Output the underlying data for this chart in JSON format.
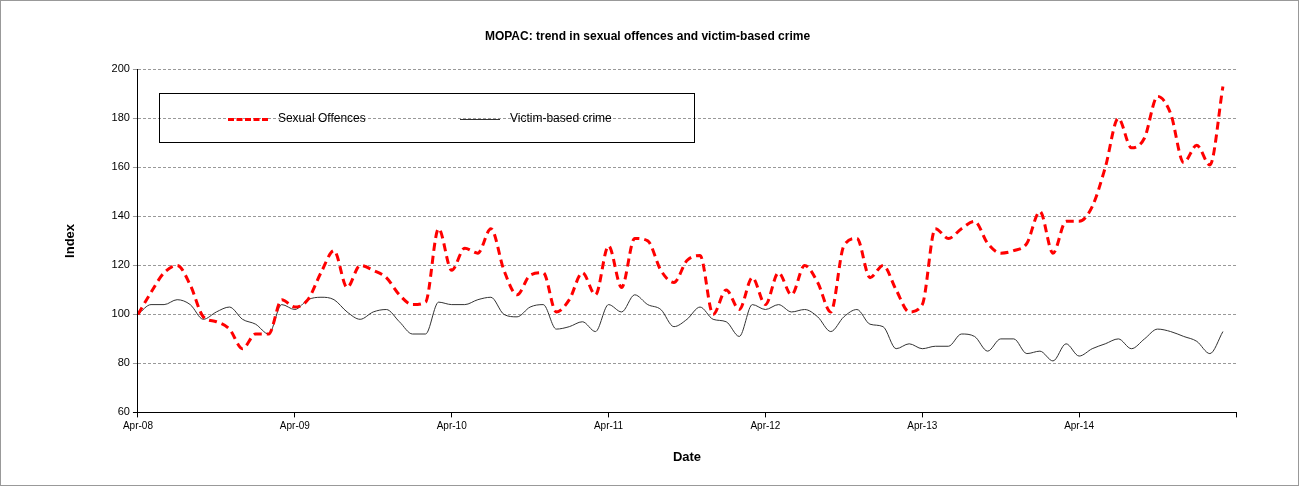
{
  "chart_data": {
    "type": "line",
    "title": "MOPAC: trend in sexual offences and victim-based crime",
    "xlabel": "Date",
    "ylabel": "Index",
    "x": [
      "2008-04",
      "2008-05",
      "2008-06",
      "2008-07",
      "2008-08",
      "2008-09",
      "2008-10",
      "2008-11",
      "2008-12",
      "2009-01",
      "2009-02",
      "2009-03",
      "2009-04",
      "2009-05",
      "2009-06",
      "2009-07",
      "2009-08",
      "2009-09",
      "2009-10",
      "2009-11",
      "2009-12",
      "2010-01",
      "2010-02",
      "2010-03",
      "2010-04",
      "2010-05",
      "2010-06",
      "2010-07",
      "2010-08",
      "2010-09",
      "2010-10",
      "2010-11",
      "2010-12",
      "2011-01",
      "2011-02",
      "2011-03",
      "2011-04",
      "2011-05",
      "2011-06",
      "2011-07",
      "2011-08",
      "2011-09",
      "2011-10",
      "2011-11",
      "2011-12",
      "2012-01",
      "2012-02",
      "2012-03",
      "2012-04",
      "2012-05",
      "2012-06",
      "2012-07",
      "2012-08",
      "2012-09",
      "2012-10",
      "2012-11",
      "2012-12",
      "2013-01",
      "2013-02",
      "2013-03",
      "2013-04",
      "2013-05",
      "2013-06",
      "2013-07",
      "2013-08",
      "2013-09",
      "2013-10",
      "2013-11",
      "2013-12",
      "2014-01",
      "2014-02",
      "2014-03",
      "2014-04",
      "2014-05",
      "2014-06",
      "2014-07",
      "2014-08",
      "2014-09",
      "2014-10",
      "2014-11",
      "2014-12",
      "2015-01",
      "2015-02",
      "2015-03"
    ],
    "series": [
      {
        "name": "Sexual Offences",
        "color": "#ff0000",
        "line_style": "dashed",
        "values": [
          100,
          109,
          117,
          120,
          112,
          99,
          97,
          94,
          86,
          92,
          92,
          106,
          103,
          106,
          117,
          126,
          111,
          120,
          118,
          115,
          108,
          104,
          105,
          135,
          118,
          127,
          125,
          135,
          118,
          108,
          116,
          117,
          101,
          106,
          117,
          108,
          128,
          111,
          131,
          130,
          118,
          113,
          122,
          124,
          100,
          110,
          102,
          115,
          104,
          117,
          108,
          120,
          113,
          101,
          128,
          131,
          115,
          120,
          110,
          101,
          104,
          135,
          131,
          135,
          138,
          129,
          125,
          126,
          129,
          142,
          125,
          138,
          138,
          144,
          160,
          180,
          168,
          172,
          189,
          182,
          162,
          169,
          161,
          193
        ]
      },
      {
        "name": "Victim-based crime",
        "color": "#333333",
        "line_style": "solid",
        "values": [
          100,
          104,
          104,
          106,
          104,
          98,
          101,
          103,
          98,
          96,
          92,
          104,
          102,
          106,
          107,
          106,
          101,
          98,
          101,
          102,
          97,
          92,
          92,
          105,
          104,
          104,
          106,
          107,
          100,
          99,
          103,
          104,
          94,
          95,
          97,
          93,
          104,
          101,
          108,
          104,
          102,
          95,
          98,
          103,
          98,
          97,
          91,
          104,
          102,
          104,
          101,
          102,
          99,
          93,
          99,
          102,
          96,
          95,
          86,
          88,
          86,
          87,
          87,
          92,
          91,
          85,
          90,
          90,
          84,
          85,
          81,
          88,
          83,
          86,
          88,
          90,
          86,
          90,
          94,
          93,
          91,
          89,
          84,
          93
        ]
      }
    ],
    "xlim": [
      "2008-04",
      "2015-04"
    ],
    "xticks": [
      {
        "value": "2008-04",
        "label": "Apr-08"
      },
      {
        "value": "2009-04",
        "label": "Apr-09"
      },
      {
        "value": "2010-04",
        "label": "Apr-10"
      },
      {
        "value": "2011-04",
        "label": "Apr-11"
      },
      {
        "value": "2012-04",
        "label": "Apr-12"
      },
      {
        "value": "2013-04",
        "label": "Apr-13"
      },
      {
        "value": "2014-04",
        "label": "Apr-14"
      },
      {
        "value": "2015-04",
        "label": null
      }
    ],
    "ylim": [
      60,
      200
    ],
    "yticks": [
      60,
      80,
      100,
      120,
      140,
      160,
      180,
      200
    ],
    "grid": "y",
    "legend": "top left",
    "marker": "none"
  }
}
